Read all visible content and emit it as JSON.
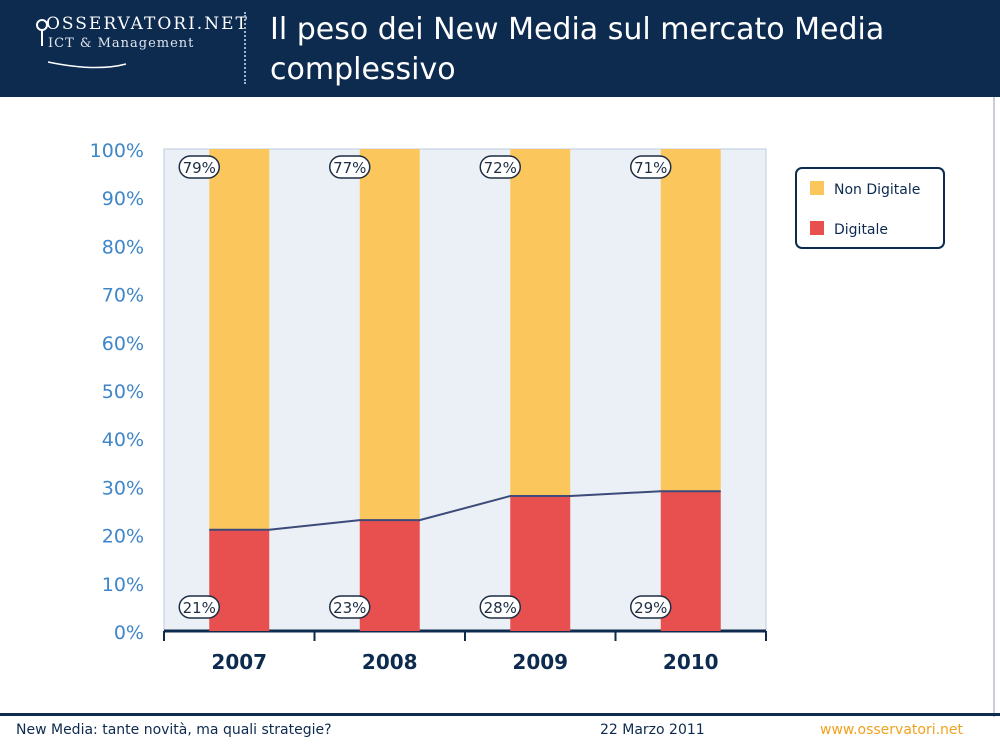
{
  "header": {
    "logo_title": "OSSERVATORI.NET",
    "logo_subtitle": "ICT & Management",
    "title_line1": "Il peso dei New Media sul mercato Media",
    "title_line2": "complessivo"
  },
  "footer": {
    "left": "New Media: tante novità, ma quali strategie?",
    "date": "22 Marzo 2011",
    "site": "www.osservatori.net"
  },
  "colors": {
    "header_bg": "#0d2a4f",
    "non_digitale": "#fbc75c",
    "digitale": "#e8504f",
    "plot_bg": "#eaf0f5",
    "axis_text": "#3f86c8"
  },
  "chart_data": {
    "type": "bar",
    "stacked": true,
    "categories": [
      "2007",
      "2008",
      "2009",
      "2010"
    ],
    "series": [
      {
        "name": "Digitale",
        "values": [
          21,
          23,
          28,
          29
        ],
        "labels": [
          "21%",
          "23%",
          "28%",
          "29%"
        ],
        "color": "#e8504f"
      },
      {
        "name": "Non Digitale",
        "values": [
          79,
          77,
          72,
          71
        ],
        "labels": [
          "79%",
          "77%",
          "72%",
          "71%"
        ],
        "color": "#fbc75c"
      }
    ],
    "legend": [
      "Non Digitale",
      "Digitale"
    ],
    "legend_position": "top-right",
    "ylim": [
      0,
      100
    ],
    "yticks": [
      "0%",
      "10%",
      "20%",
      "30%",
      "40%",
      "50%",
      "60%",
      "70%",
      "80%",
      "90%",
      "100%"
    ],
    "title": "",
    "xlabel": "",
    "ylabel": "",
    "trend_line_on": "Digitale"
  }
}
